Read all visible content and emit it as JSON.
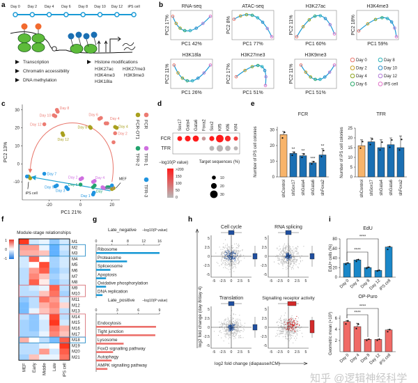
{
  "panel_letters": {
    "a": "a",
    "b": "b",
    "c": "c",
    "d": "d",
    "e": "e",
    "f": "f",
    "g": "g",
    "h": "h",
    "i": "i"
  },
  "panel_a": {
    "timeline": [
      "Day 0",
      "Day 2",
      "Day 4",
      "Day 6",
      "Day 8",
      "Day 10",
      "Day 12",
      "iPS cell"
    ],
    "timeline_color": "#1a9ad6",
    "bullets": [
      "Transcription",
      "Chromatin accessibility",
      "DNA methylation"
    ],
    "histone_header": "Histone modifications",
    "histone_marks": [
      "H3K27ac",
      "H3K27me3",
      "H3K4me3",
      "H3K9me3",
      "H3K18la"
    ]
  },
  "panel_b": {
    "panels": [
      {
        "title": "RNA-seq",
        "xlabel": "PC1 42%",
        "ylabel": "PC2 17%"
      },
      {
        "title": "ATAC-seq",
        "xlabel": "PC1 77%",
        "ylabel": "PC2 8%"
      },
      {
        "title": "H3K27ac",
        "xlabel": "PC1 60%",
        "ylabel": "PC2 11%"
      },
      {
        "title": "H3K4me3",
        "xlabel": "PC1 59%",
        "ylabel": "PC2 18%"
      },
      {
        "title": "H3K18la",
        "xlabel": "PC1 26%",
        "ylabel": "PC2 11%"
      },
      {
        "title": "H3K27me3",
        "xlabel": "PC1 51%",
        "ylabel": "PC2 17%"
      },
      {
        "title": "H3K9me3",
        "xlabel": "PC1 51%",
        "ylabel": "PC2 11%"
      }
    ],
    "legend": [
      {
        "label": "Day 0",
        "color": "#e8766e"
      },
      {
        "label": "Day 2",
        "color": "#c9a020"
      },
      {
        "label": "Day 4",
        "color": "#8ea51f"
      },
      {
        "label": "Day 6",
        "color": "#2aa86a"
      },
      {
        "label": "Day 8",
        "color": "#2bb3b8"
      },
      {
        "label": "Day 10",
        "color": "#2a8ec8"
      },
      {
        "label": "Day 12",
        "color": "#b27ad8"
      },
      {
        "label": "iPS cell",
        "color": "#e070c8"
      }
    ],
    "curve_color": "#1a9ad6"
  },
  "chart_data": [
    {
      "id": "c",
      "type": "scatter",
      "xlabel": "PC1 21%",
      "ylabel": "PC2 13%",
      "xlim": [
        -37,
        25
      ],
      "ylim": [
        -20,
        33
      ],
      "xticks": [
        -20,
        0,
        20
      ],
      "yticks": [
        -10,
        0,
        10,
        20,
        30
      ],
      "legend_position": "right",
      "annotations": {
        "ips": "iPS cell",
        "mef": "MEF"
      },
      "series": [
        {
          "name": "FCR",
          "color": "#ec7b72",
          "points": [
            {
              "x": 21,
              "y": 12,
              "label": ""
            },
            {
              "x": 22,
              "y": 17,
              "label": "Day 2"
            },
            {
              "x": 16,
              "y": 22.5,
              "label": ""
            },
            {
              "x": 17,
              "y": 22.5,
              "label": "Day 4"
            },
            {
              "x": 12,
              "y": 25,
              "label": ""
            },
            {
              "x": 13,
              "y": 25.5,
              "label": "Day 6"
            },
            {
              "x": -15,
              "y": 30,
              "label": "Day 8"
            },
            {
              "x": -14.5,
              "y": 29,
              "label": ""
            },
            {
              "x": -17,
              "y": 27,
              "label": "Day 10"
            },
            {
              "x": -16,
              "y": 26.5,
              "label": ""
            },
            {
              "x": -23,
              "y": 22,
              "label": "Day 12"
            }
          ]
        },
        {
          "name": "FCR-OT1",
          "color": "#a9a01e",
          "points": [
            {
              "x": 22,
              "y": 20.5,
              "label": "Day 4"
            },
            {
              "x": 23,
              "y": 20,
              "label": ""
            },
            {
              "x": 6,
              "y": 20.5,
              "label": "Day 8"
            },
            {
              "x": 6.5,
              "y": 20,
              "label": ""
            },
            {
              "x": -11.5,
              "y": 17,
              "label": ""
            },
            {
              "x": -11,
              "y": 16,
              "label": "Day 12"
            },
            {
              "x": -33,
              "y": -7,
              "label": ""
            },
            {
              "x": -32,
              "y": -8,
              "label": ""
            },
            {
              "x": 20,
              "y": -14,
              "label": ""
            },
            {
              "x": 21,
              "y": -13.5,
              "label": ""
            }
          ]
        },
        {
          "name": "TFR-1",
          "color": "#cf6fe0",
          "points": [
            {
              "x": 0,
              "y": -8.5,
              "label": "Day 2"
            },
            {
              "x": 1,
              "y": -8,
              "label": ""
            },
            {
              "x": 8,
              "y": -10,
              "label": "Day 4"
            },
            {
              "x": 9,
              "y": -9.5,
              "label": ""
            },
            {
              "x": 14,
              "y": -13,
              "label": "Day 2"
            },
            {
              "x": 15,
              "y": -13.5,
              "label": ""
            }
          ]
        },
        {
          "name": "TFR-2",
          "color": "#22a36e",
          "points": [
            {
              "x": 0,
              "y": -11.5,
              "label": "Day 6"
            },
            {
              "x": 8,
              "y": -13,
              "label": ""
            },
            {
              "x": 9,
              "y": -12,
              "label": "Day"
            },
            {
              "x": 17,
              "y": -13,
              "label": ""
            },
            {
              "x": 18,
              "y": -13,
              "label": ""
            }
          ]
        },
        {
          "name": "TFR-3",
          "color": "#1f94e0",
          "points": [
            {
              "x": -23,
              "y": -5.5,
              "label": "Day 7"
            },
            {
              "x": -15,
              "y": -12,
              "label": "Day 5"
            },
            {
              "x": -16,
              "y": -12.5,
              "label": ""
            },
            {
              "x": -8,
              "y": -14,
              "label": "Day 3"
            },
            {
              "x": -9,
              "y": -13,
              "label": ""
            },
            {
              "x": 8,
              "y": -17,
              "label": "Day 1"
            },
            {
              "x": 8.5,
              "y": -16,
              "label": ""
            },
            {
              "x": -34,
              "y": -7,
              "label": ""
            },
            {
              "x": 20,
              "y": -12,
              "label": ""
            }
          ]
        }
      ]
    },
    {
      "id": "d",
      "type": "dot",
      "columns": [
        "Sox17",
        "Gata4",
        "Gata6",
        "Foxa2",
        "Sox2",
        "Klf5",
        "Klf6",
        "Klf4"
      ],
      "rows": [
        "FCR",
        "TFR"
      ],
      "neg_log10_p": [
        [
          200,
          200,
          200,
          40,
          200,
          200,
          180,
          160
        ],
        [
          null,
          null,
          null,
          null,
          5,
          5,
          5,
          5
        ]
      ],
      "target_pct": [
        [
          15,
          20,
          22,
          10,
          16,
          30,
          20,
          12
        ],
        [
          null,
          null,
          null,
          null,
          15,
          24,
          18,
          11
        ]
      ],
      "color_legend_title": "−log10(P value)",
      "color_ticks": [
        ">200",
        "150",
        "100",
        "50",
        "0"
      ],
      "color_range": [
        "#b8b8b8",
        "#ff1a1a"
      ],
      "size_legend_title": "Target sequences (%)",
      "size_ticks": [
        10,
        20,
        30
      ]
    },
    {
      "id": "e_fcr",
      "type": "bar",
      "title": "FCR",
      "ylabel": "Number of iPS cell colonies",
      "categories": [
        "shControl",
        "shSox17",
        "shGata4",
        "shGata6",
        "shFoxa2"
      ],
      "values": [
        27,
        15,
        13.5,
        9,
        14
      ],
      "errors": [
        2,
        1,
        1.5,
        1,
        4
      ],
      "significance": [
        "",
        "**",
        "**",
        "***",
        "**"
      ],
      "colors": [
        "#f8b46a",
        "#1a6fb3",
        "#1a6fb3",
        "#1a6fb3",
        "#1a6fb3"
      ],
      "ylim": [
        0,
        32
      ],
      "yticks": [
        0,
        10,
        20,
        30
      ]
    },
    {
      "id": "e_tfr",
      "type": "bar",
      "title": "TFR",
      "ylabel": "Number of iPS cell colonies",
      "categories": [
        "shControl",
        "shSox17",
        "shGata4",
        "shGata6",
        "shFoxa2"
      ],
      "values": [
        16,
        18,
        15,
        16.5,
        15
      ],
      "errors": [
        3,
        2,
        4,
        3.5,
        6
      ],
      "significance": [
        "",
        "",
        "",
        "",
        ""
      ],
      "colors": [
        "#f8b46a",
        "#1a6fb3",
        "#1a6fb3",
        "#1a6fb3",
        "#1a6fb3"
      ],
      "ylim": [
        0,
        25
      ],
      "yticks": [
        0,
        5,
        10,
        15,
        20,
        25
      ]
    },
    {
      "id": "f",
      "type": "heatmap",
      "title": "Module-stage relationships",
      "columns": [
        "MEF",
        "Early",
        "Middle",
        "Late",
        "iPS cell"
      ],
      "rows": [
        "M1",
        "M2",
        "M3",
        "M4",
        "M5",
        "M6",
        "M7",
        "M8",
        "M9",
        "M10",
        "M11",
        "M12",
        "M13",
        "M14",
        "M15",
        "M16",
        "M17",
        "M18",
        "M19",
        "M20",
        "M21"
      ],
      "values": [
        [
          1,
          -0.2,
          -0.1,
          -0.5,
          -0.2
        ],
        [
          0.5,
          0.5,
          -0.1,
          -0.7,
          -0.2
        ],
        [
          0.4,
          0.4,
          0.3,
          -0.7,
          -0.3
        ],
        [
          -0.2,
          0.8,
          0,
          -0.4,
          -0.2
        ],
        [
          -0.2,
          0,
          0.9,
          -0.4,
          -0.2
        ],
        [
          -0.3,
          0.5,
          0.8,
          -0.5,
          -0.3
        ],
        [
          -0.3,
          0.6,
          0.3,
          -0.4,
          -0.2
        ],
        [
          -0.3,
          0.8,
          0.1,
          -0.5,
          -0.3
        ],
        [
          -0.3,
          -0.2,
          -0.1,
          0.8,
          -0.3
        ],
        [
          -0.3,
          -0.3,
          0.3,
          0.7,
          -0.4
        ],
        [
          -0.5,
          -0.3,
          0.7,
          0.5,
          -0.2
        ],
        [
          -0.6,
          -0.3,
          0.4,
          0.6,
          0.2
        ],
        [
          -0.6,
          -0.1,
          0.3,
          0.5,
          -0.3
        ],
        [
          -0.3,
          -0.5,
          -0.1,
          0.9,
          -0.3
        ],
        [
          -0.4,
          -0.5,
          -0.2,
          1,
          -0.2
        ],
        [
          -0.4,
          -0.5,
          -0.2,
          0.7,
          0.4
        ],
        [
          -0.4,
          -0.4,
          -0.1,
          0.6,
          0.3
        ],
        [
          0.4,
          0,
          -0.3,
          -0.6,
          0.8
        ],
        [
          -0.3,
          -0.3,
          -0.1,
          0,
          1
        ],
        [
          -0.3,
          -0.3,
          0.5,
          -0.2,
          0.8
        ],
        [
          -0.4,
          0.3,
          -0.1,
          -0.1,
          0.7
        ]
      ],
      "scale_ticks": [
        "1",
        "0",
        "-1"
      ],
      "zlim": [
        -1,
        1
      ],
      "highlight_boxes": [
        {
          "rows": [
            "M2",
            "M3"
          ],
          "color": "#2a8ec8"
        },
        {
          "rows": [
            "M9",
            "M10"
          ],
          "color": "#d9737a"
        },
        {
          "rows": [
            "M14",
            "M17"
          ],
          "color": "#d9737a"
        },
        {
          "rows": [
            "M18",
            "M18"
          ],
          "color": "#2a8ec8"
        }
      ]
    },
    {
      "id": "g_neg",
      "type": "bar",
      "orientation": "horizontal",
      "title": "Late_negative",
      "xlabel": "−log10(P value)",
      "categories": [
        "Ribosome",
        "Proteasome",
        "Spliceosome",
        "Apoptosis",
        "Oxidative phosphorylation",
        "DNA replication"
      ],
      "values": [
        16,
        7.8,
        3.6,
        2.5,
        2.5,
        1.6
      ],
      "color": "#1a9ad6",
      "xlim": [
        0,
        16
      ],
      "xticks": [
        0,
        4,
        8,
        12,
        16
      ]
    },
    {
      "id": "g_pos",
      "type": "bar",
      "orientation": "horizontal",
      "title": "Late_positive",
      "xlabel": "−log10(P value)",
      "categories": [
        "Endocytosis",
        "Tight junction",
        "Lysosome",
        "FoxO signalling pathway",
        "Autophagy",
        "AMPK signalling pathway"
      ],
      "values": [
        8.5,
        8.4,
        3.9,
        2.4,
        2.2,
        1.6
      ],
      "color": "#ec6f6a",
      "xlim": [
        0,
        9
      ],
      "xticks": [
        0,
        3,
        6,
        9
      ]
    },
    {
      "id": "h",
      "type": "scatter",
      "xlabel": "log2 fold change (diapause/ICM)",
      "ylabel": "log2 fold change (day 8/day 4)",
      "xlim": [
        -6,
        6
      ],
      "ylim": [
        -6,
        6
      ],
      "xticks": [
        "-5",
        "-2.5",
        "0",
        "2.5",
        "5"
      ],
      "yticks": [
        "5",
        "2.5",
        "0",
        "-2.5",
        "-5"
      ],
      "background_color": "#bdbdbd",
      "panels": [
        {
          "title": "Cell cycle",
          "color": "#1f4fa0",
          "highlight_spread": 1.3
        },
        {
          "title": "RNA splicing",
          "color": "#1f4fa0",
          "highlight_spread": 0.7
        },
        {
          "title": "Translation",
          "color": "#1f4fa0",
          "highlight_spread": 0.8
        },
        {
          "title": "Signalling receptor activity",
          "color": "#d32a2a",
          "highlight_spread": 1.5
        }
      ]
    },
    {
      "id": "i_edu",
      "type": "bar",
      "title": "EdU",
      "ylabel": "EdU+ cells (%)",
      "categories": [
        "Day 0",
        "Day 4",
        "Day 8",
        "Day 12",
        "iPS cell"
      ],
      "values": [
        29,
        36,
        20,
        14,
        63
      ],
      "errors": [
        1,
        1,
        1,
        0.5,
        1
      ],
      "color": "#1a87c8",
      "ylim": [
        0,
        80
      ],
      "yticks": [
        0,
        20,
        40,
        60,
        80
      ],
      "significance": [
        {
          "from": "Day 0",
          "to": "Day 8",
          "label": "****"
        },
        {
          "from": "Day 0",
          "to": "Day 12",
          "label": "****"
        }
      ]
    },
    {
      "id": "i_opp",
      "type": "bar",
      "title": "OP-Puro",
      "ylabel": "Geometric mean (×10³)",
      "categories": [
        "Day 0",
        "Day 4",
        "Day 8",
        "Day 12",
        "iPS cell"
      ],
      "values": [
        5.4,
        4.5,
        2.2,
        2.2,
        3.9
      ],
      "errors": [
        0.2,
        0.6,
        0.05,
        0.05,
        0.1
      ],
      "color": "#f06a66",
      "ylim": [
        0,
        6.5
      ],
      "yticks": [
        2,
        4,
        6
      ],
      "significance": [
        {
          "from": "Day 0",
          "to": "Day 8",
          "label": "****"
        },
        {
          "from": "Day 0",
          "to": "Day 12",
          "label": "****"
        }
      ]
    }
  ],
  "watermark": "知乎 @逻辑神经科学"
}
